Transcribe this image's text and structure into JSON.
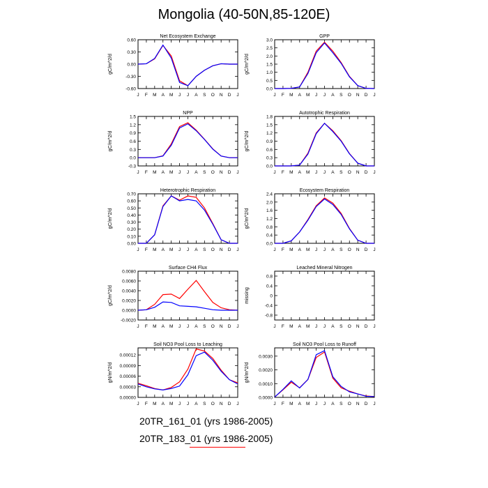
{
  "title": "Mongolia (40-50N,85-120E)",
  "legend": [
    {
      "label": "20TR_161_01 (yrs 1986-2005)",
      "color": "#0000ff"
    },
    {
      "label": "20TR_183_01 (yrs 1986-2005)",
      "color": "#ff0000"
    }
  ],
  "months": [
    "J",
    "F",
    "M",
    "A",
    "M",
    "J",
    "J",
    "A",
    "S",
    "O",
    "N",
    "D",
    "J"
  ],
  "chart_data": [
    {
      "type": "line",
      "title": "Net Ecosystem Exchange",
      "ylabel": "gC/m^2/d",
      "ylim": [
        -0.6,
        0.6
      ],
      "yticks": [
        -0.6,
        -0.3,
        0.0,
        0.3,
        0.6
      ],
      "ytick_labels": [
        "-0.60",
        "-0.30",
        "0.00",
        "0.30",
        "0.60"
      ],
      "series": [
        {
          "name": "20TR_183_01",
          "color": "#ff0000",
          "values": [
            0.0,
            0.01,
            0.13,
            0.46,
            0.2,
            -0.41,
            -0.53,
            -0.3,
            -0.15,
            -0.04,
            0.01,
            0.0,
            0.0
          ]
        },
        {
          "name": "20TR_161_01",
          "color": "#0000ff",
          "values": [
            0.0,
            0.01,
            0.14,
            0.47,
            0.15,
            -0.45,
            -0.53,
            -0.3,
            -0.15,
            -0.04,
            0.01,
            0.0,
            0.0
          ]
        }
      ]
    },
    {
      "type": "line",
      "title": "GPP",
      "ylabel": "gC/m^2/d",
      "ylim": [
        0,
        3.0
      ],
      "yticks": [
        0,
        0.5,
        1.0,
        1.5,
        2.0,
        2.5,
        3.0
      ],
      "ytick_labels": [
        "0.0",
        "0.5",
        "1.0",
        "1.5",
        "2.0",
        "2.5",
        "3.0"
      ],
      "series": [
        {
          "name": "20TR_183_01",
          "color": "#ff0000",
          "values": [
            0,
            0,
            0.01,
            0.1,
            1.0,
            2.3,
            2.85,
            2.3,
            1.6,
            0.75,
            0.18,
            0.01,
            0
          ]
        },
        {
          "name": "20TR_161_01",
          "color": "#0000ff",
          "values": [
            0,
            0,
            0.01,
            0.1,
            0.92,
            2.2,
            2.8,
            2.2,
            1.55,
            0.72,
            0.18,
            0.01,
            0
          ]
        }
      ]
    },
    {
      "type": "line",
      "title": "NPP",
      "ylabel": "gC/m^2/d",
      "ylim": [
        -0.3,
        1.5
      ],
      "yticks": [
        -0.3,
        0,
        0.3,
        0.6,
        0.9,
        1.2,
        1.5
      ],
      "ytick_labels": [
        "-0.3",
        "0.0",
        "0.3",
        "0.6",
        "0.9",
        "1.2",
        "1.5"
      ],
      "series": [
        {
          "name": "20TR_183_01",
          "color": "#ff0000",
          "values": [
            0,
            0,
            0,
            0.07,
            0.5,
            1.13,
            1.27,
            1.0,
            0.67,
            0.32,
            0.06,
            0,
            0
          ]
        },
        {
          "name": "20TR_161_01",
          "color": "#0000ff",
          "values": [
            0,
            0,
            0,
            0.06,
            0.45,
            1.08,
            1.23,
            0.98,
            0.66,
            0.31,
            0.06,
            0,
            0
          ]
        }
      ]
    },
    {
      "type": "line",
      "title": "Autotrophic Respiration",
      "ylabel": "gC/m^2/d",
      "ylim": [
        0,
        1.8
      ],
      "yticks": [
        0,
        0.3,
        0.6,
        0.9,
        1.2,
        1.5,
        1.8
      ],
      "ytick_labels": [
        "0.0",
        "0.3",
        "0.6",
        "0.9",
        "1.2",
        "1.5",
        "1.8"
      ],
      "series": [
        {
          "name": "20TR_183_01",
          "color": "#ff0000",
          "values": [
            0,
            0,
            0,
            0.03,
            0.46,
            1.2,
            1.55,
            1.28,
            0.92,
            0.45,
            0.1,
            0,
            0
          ]
        },
        {
          "name": "20TR_161_01",
          "color": "#0000ff",
          "values": [
            0,
            0,
            0,
            0.03,
            0.43,
            1.17,
            1.55,
            1.25,
            0.9,
            0.44,
            0.1,
            0,
            0
          ]
        }
      ]
    },
    {
      "type": "line",
      "title": "Heterotrophic Respiration",
      "ylabel": "gC/m^2/d",
      "ylim": [
        0,
        0.7
      ],
      "yticks": [
        0,
        0.1,
        0.2,
        0.3,
        0.4,
        0.5,
        0.6,
        0.7
      ],
      "ytick_labels": [
        "0.00",
        "0.10",
        "0.20",
        "0.30",
        "0.40",
        "0.50",
        "0.60",
        "0.70"
      ],
      "series": [
        {
          "name": "20TR_183_01",
          "color": "#ff0000",
          "values": [
            0,
            0,
            0.12,
            0.53,
            0.67,
            0.61,
            0.67,
            0.65,
            0.5,
            0.28,
            0.05,
            0,
            0
          ]
        },
        {
          "name": "20TR_161_01",
          "color": "#0000ff",
          "values": [
            0,
            0,
            0.12,
            0.52,
            0.67,
            0.6,
            0.62,
            0.6,
            0.47,
            0.27,
            0.05,
            0,
            0
          ]
        }
      ]
    },
    {
      "type": "line",
      "title": "Ecosystem Respiration",
      "ylabel": "gC/m^2/d",
      "ylim": [
        0,
        2.4
      ],
      "yticks": [
        0,
        0.4,
        0.8,
        1.2,
        1.6,
        2.0,
        2.4
      ],
      "ytick_labels": [
        "0.0",
        "0.4",
        "0.8",
        "1.2",
        "1.6",
        "2.0",
        "2.4"
      ],
      "series": [
        {
          "name": "20TR_183_01",
          "color": "#ff0000",
          "values": [
            0,
            0,
            0.12,
            0.55,
            1.15,
            1.82,
            2.2,
            1.95,
            1.45,
            0.72,
            0.15,
            0,
            0
          ]
        },
        {
          "name": "20TR_161_01",
          "color": "#0000ff",
          "values": [
            0,
            0,
            0.12,
            0.55,
            1.12,
            1.78,
            2.15,
            1.88,
            1.4,
            0.7,
            0.15,
            0,
            0
          ]
        }
      ]
    },
    {
      "type": "line",
      "title": "Surface CH4 Flux",
      "ylabel": "gC/m^2/d",
      "ylim": [
        -0.002,
        0.008
      ],
      "yticks": [
        -0.002,
        0,
        0.002,
        0.004,
        0.006,
        0.008
      ],
      "ytick_labels": [
        "-0.0020",
        "0.0000",
        "0.0020",
        "0.0040",
        "0.0060",
        "0.0080"
      ],
      "series": [
        {
          "name": "20TR_183_01",
          "color": "#ff0000",
          "values": [
            0,
            0.0001,
            0.0012,
            0.0032,
            0.0033,
            0.0024,
            0.0043,
            0.0061,
            0.0038,
            0.0016,
            0.0005,
            0.0001,
            0
          ]
        },
        {
          "name": "20TR_161_01",
          "color": "#0000ff",
          "values": [
            0,
            0.0001,
            0.0006,
            0.0017,
            0.0016,
            0.0009,
            0.0008,
            0.0007,
            0.0004,
            0.0001,
            0,
            0,
            0
          ]
        }
      ]
    },
    {
      "type": "line",
      "title": "Leached Mineral Nitrogen",
      "ylabel": "missing",
      "ylim": [
        -1.0,
        1.0
      ],
      "yticks": [
        -0.8,
        -0.4,
        0,
        0.4,
        0.8
      ],
      "ytick_labels": [
        "-0.8",
        "-0.4",
        "0",
        "0.4",
        "0.8"
      ],
      "series": []
    },
    {
      "type": "line",
      "title": "Soil NO3 Pool Loss to Leaching",
      "ylabel": "gN/m^2/d",
      "ylim": [
        0,
        0.00014
      ],
      "yticks": [
        0,
        3e-05,
        6e-05,
        9e-05,
        0.00012
      ],
      "ytick_labels": [
        "0.00000",
        "0.00003",
        "0.00006",
        "0.00009",
        "0.00012"
      ],
      "series": [
        {
          "name": "20TR_183_01",
          "color": "#ff0000",
          "values": [
            4e-05,
            3.3e-05,
            2.5e-05,
            2.1e-05,
            2.8e-05,
            4.4e-05,
            8e-05,
            0.000137,
            0.000131,
            0.00011,
            7.7e-05,
            5e-05,
            4.1e-05
          ]
        },
        {
          "name": "20TR_161_01",
          "color": "#0000ff",
          "values": [
            3.8e-05,
            3e-05,
            2.4e-05,
            2.1e-05,
            2.5e-05,
            3.2e-05,
            6.4e-05,
            0.000118,
            0.000128,
            0.000105,
            7.4e-05,
            5e-05,
            3.8e-05
          ]
        }
      ]
    },
    {
      "type": "line",
      "title": "Soil NO3 Pool Loss to Runoff",
      "ylabel": "gN/m^2/d",
      "ylim": [
        0,
        0.0036
      ],
      "yticks": [
        0,
        0.001,
        0.002,
        0.003
      ],
      "ytick_labels": [
        "0.0000",
        "0.0010",
        "0.0020",
        "0.0030"
      ],
      "series": [
        {
          "name": "20TR_183_01",
          "color": "#ff0000",
          "values": [
            2e-05,
            0.00055,
            0.0011,
            0.0007,
            0.0013,
            0.0029,
            0.0033,
            0.0014,
            0.0007,
            0.00045,
            0.00025,
            0.0001,
            6e-05
          ]
        },
        {
          "name": "20TR_161_01",
          "color": "#0000ff",
          "values": [
            2e-05,
            0.00058,
            0.0012,
            0.00068,
            0.0013,
            0.0031,
            0.0034,
            0.0015,
            0.0008,
            0.0004,
            0.00025,
            8e-05,
            6e-05
          ]
        }
      ]
    }
  ]
}
